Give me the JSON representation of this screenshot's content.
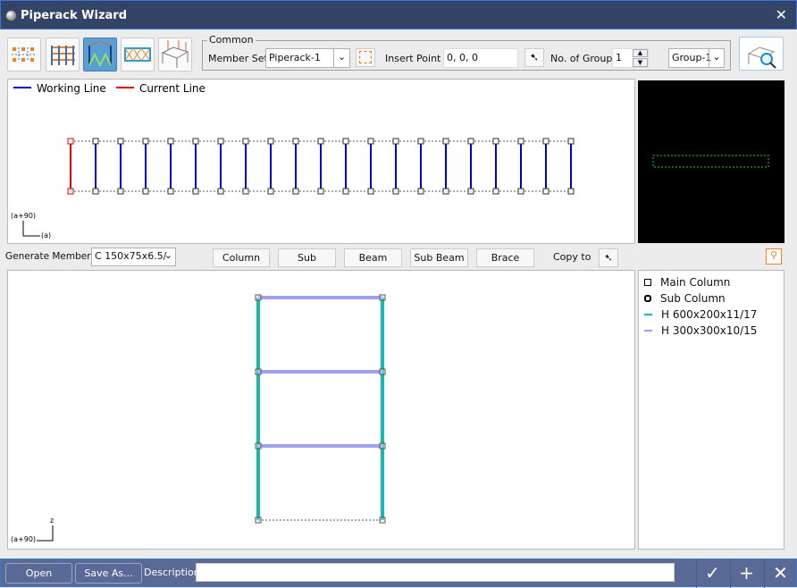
{
  "window": {
    "title": "Piperack Wizard"
  },
  "toolbar": {
    "modes": [
      "grid-layout",
      "frame-columns",
      "frame-braced",
      "plan-brace",
      "3d-load"
    ],
    "selected_mode": 2
  },
  "common": {
    "legend": "Common",
    "member_set_label": "Member Set",
    "member_set_value": "Piperack-1",
    "insert_point_label": "Insert Point",
    "insert_point_value": "0, 0, 0",
    "no_of_group_label": "No. of Group",
    "no_of_group_value": "1",
    "group_value": "Group-1"
  },
  "plan_view": {
    "legend_working": "Working Line",
    "legend_current": "Current Line",
    "working_color": "#0000cc",
    "current_color": "#e00000",
    "axis_label_1": "(a+90)",
    "axis_label_2": "(a)",
    "column_count": 21,
    "current_index": 0
  },
  "member_bar": {
    "generate_label": "Generate Member :",
    "section_value": "C 150x75x6.5/",
    "buttons": [
      "Column",
      "Sub Column",
      "Beam",
      "Sub Beam",
      "Brace"
    ],
    "copy_to_label": "Copy to"
  },
  "elevation": {
    "axis_z": "z",
    "axis_label": "(a+90)",
    "column_color": "#18b8b0",
    "beam_color": "#a0a0f0"
  },
  "legend": {
    "items": [
      {
        "symbol": "square",
        "label": "Main Column"
      },
      {
        "symbol": "octagon",
        "label": "Sub Column"
      },
      {
        "symbol": "line",
        "color": "#18b8b0",
        "label": "H 600x200x11/17"
      },
      {
        "symbol": "line",
        "color": "#a0a0f0",
        "label": "H 300x300x10/15"
      }
    ]
  },
  "footer": {
    "open": "Open",
    "save_as": "Save As...",
    "description_label": "Description",
    "description_value": ""
  }
}
